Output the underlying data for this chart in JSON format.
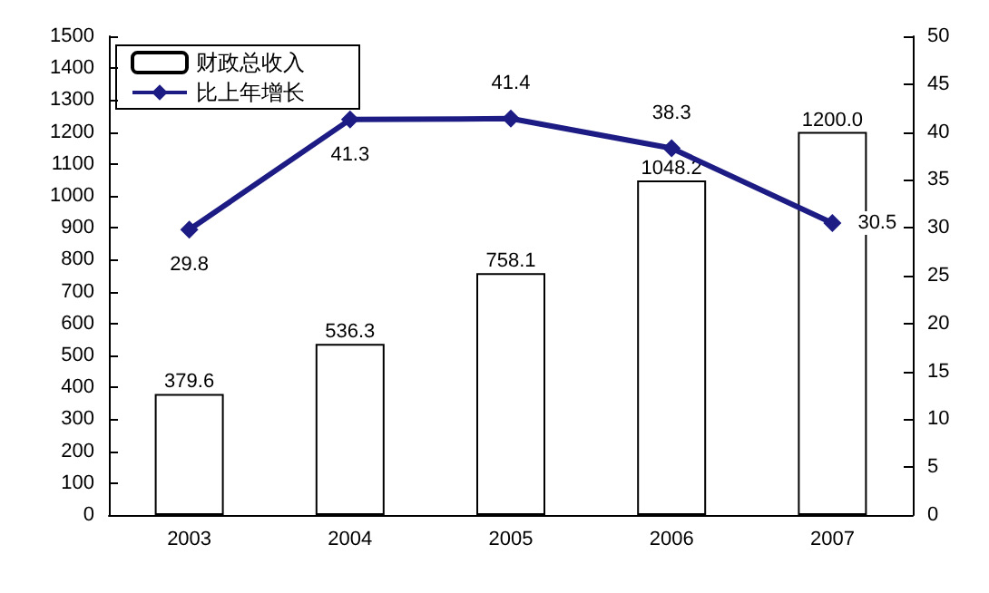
{
  "chart_data": {
    "type": "bar",
    "categories": [
      "2003",
      "2004",
      "2005",
      "2006",
      "2007"
    ],
    "series": [
      {
        "name": "财政总收入",
        "color": "#ffffff",
        "values": [
          379.6,
          536.3,
          758.1,
          1048.2,
          1200.0
        ],
        "value_labels": [
          "379.6",
          "536.3",
          "758.1",
          "1048.2",
          "1200.0"
        ]
      },
      {
        "name": "比上年增长",
        "type": "line",
        "axis": "y2",
        "color": "#1c1c84",
        "marker": "diamond",
        "values": [
          29.8,
          41.3,
          41.4,
          38.3,
          30.5
        ],
        "value_labels": [
          "29.8",
          "41.3",
          "41.4",
          "38.3",
          "30.5"
        ]
      }
    ],
    "ylim": [
      0,
      1500
    ],
    "yticks": [
      0,
      100,
      200,
      300,
      400,
      500,
      600,
      700,
      800,
      900,
      1000,
      1100,
      1200,
      1300,
      1400,
      1500
    ],
    "y2lim": [
      0,
      50
    ],
    "y2ticks": [
      0,
      5,
      10,
      15,
      20,
      25,
      30,
      35,
      40,
      45,
      50
    ],
    "grid": false,
    "legend": "top left"
  }
}
